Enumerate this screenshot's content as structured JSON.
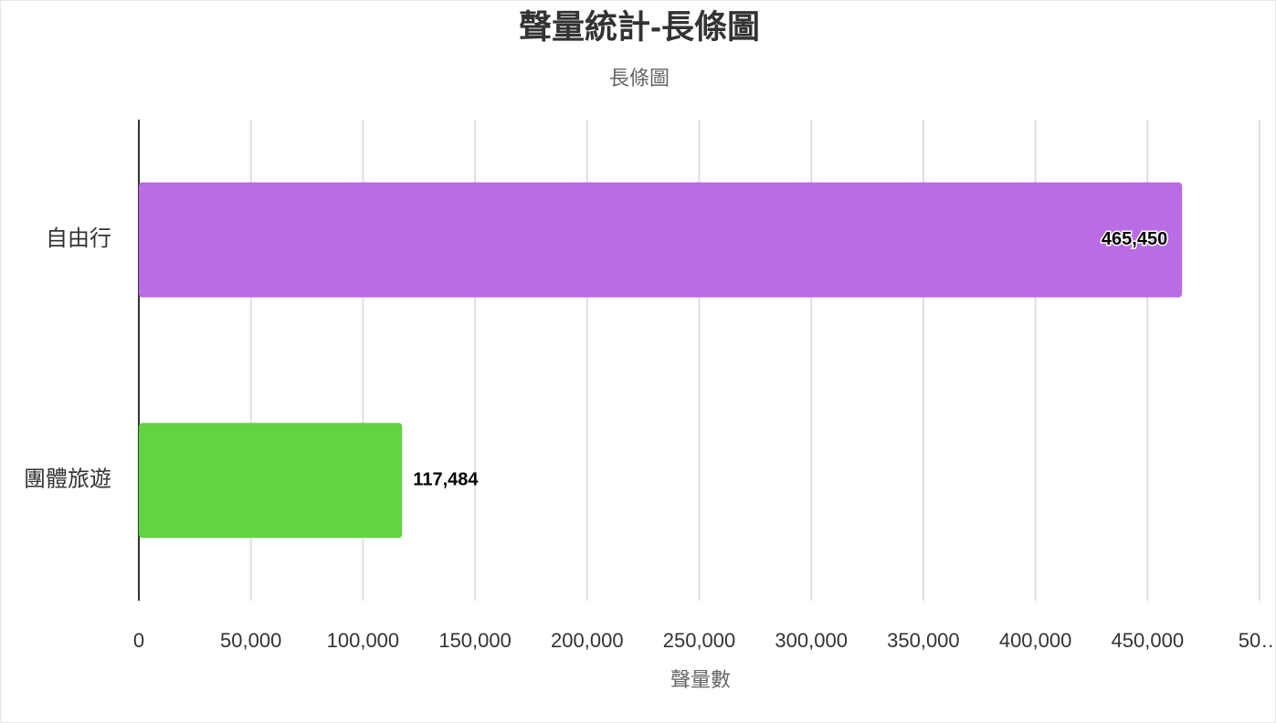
{
  "chart_data": {
    "type": "hbar",
    "title": "聲量統計-長條圖",
    "subtitle": "長條圖",
    "x_label": "聲量數",
    "categories": [
      "自由行",
      "團體旅遊"
    ],
    "values": [
      465450,
      117484
    ],
    "value_labels": [
      "465,450",
      "117,484"
    ],
    "colors": [
      "#b96ce3",
      "#62d343"
    ],
    "xlim": [
      0,
      500000
    ],
    "xticks": [
      0,
      {
        "value": 50000,
        "label": "50,000"
      },
      {
        "value": 100000,
        "label": "100,000"
      },
      {
        "value": 150000,
        "label": "150,000"
      },
      {
        "value": 200000,
        "label": "200,000"
      },
      {
        "value": 250000,
        "label": "250,000"
      },
      {
        "value": 300000,
        "label": "300,000"
      },
      {
        "value": 350000,
        "label": "350,000"
      },
      {
        "value": 400000,
        "label": "400,000"
      },
      {
        "value": 450000,
        "label": "450,000"
      },
      {
        "value": 500000,
        "label": "50…"
      }
    ],
    "grid": true
  }
}
